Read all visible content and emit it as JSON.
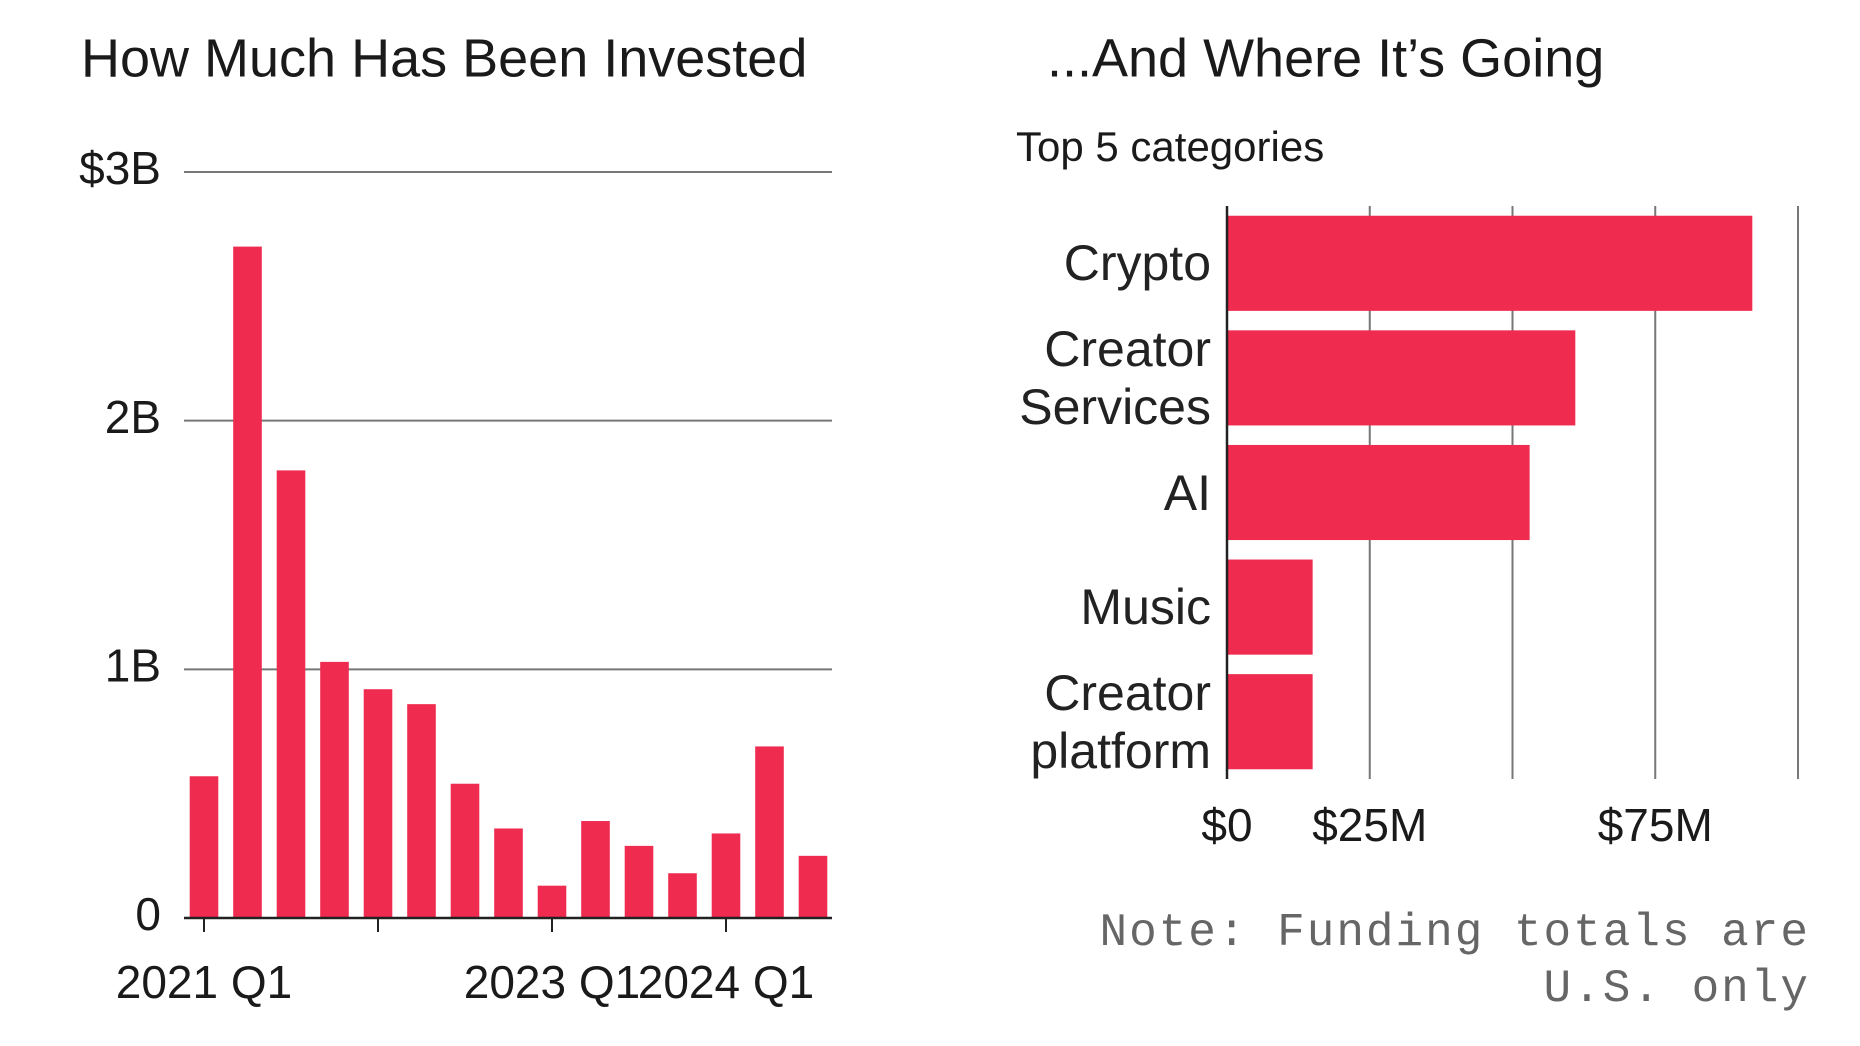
{
  "chart_data": [
    {
      "type": "bar",
      "title": "How Much Has Been Invested",
      "categories": [
        "2021 Q1",
        null,
        null,
        null,
        null,
        null,
        null,
        null,
        "2023 Q1",
        null,
        null,
        null,
        "2024 Q1",
        null,
        null
      ],
      "values": [
        0.57,
        2.7,
        1.8,
        1.03,
        0.92,
        0.86,
        0.54,
        0.36,
        0.13,
        0.39,
        0.29,
        0.18,
        0.34,
        0.69,
        0.25
      ],
      "color": "#ef2b50",
      "ylim": [
        0,
        3
      ],
      "yticks": [
        0,
        {
          "value": 1,
          "label": "1B"
        },
        {
          "value": 2,
          "label": "2B"
        },
        {
          "value": 3,
          "label": "$3B"
        }
      ],
      "grid": true
    },
    {
      "type": "hbar",
      "title": "...And Where It’s Going",
      "subtitle": "Top 5 categories",
      "categories": [
        "Crypto",
        "Creator Services",
        "AI",
        "Music",
        "Creator platform"
      ],
      "values": [
        92,
        61,
        53,
        15,
        15
      ],
      "color": "#ef2b50",
      "xlim": [
        0,
        100
      ],
      "xticks": [
        {
          "value": 0,
          "label": "$0"
        },
        {
          "value": 25,
          "label": "$25M"
        },
        {
          "value": 75,
          "label": "$75M"
        }
      ],
      "gridlines": [
        25,
        50,
        75,
        100
      ],
      "note": "Note: Funding totals are U.S. only"
    }
  ]
}
